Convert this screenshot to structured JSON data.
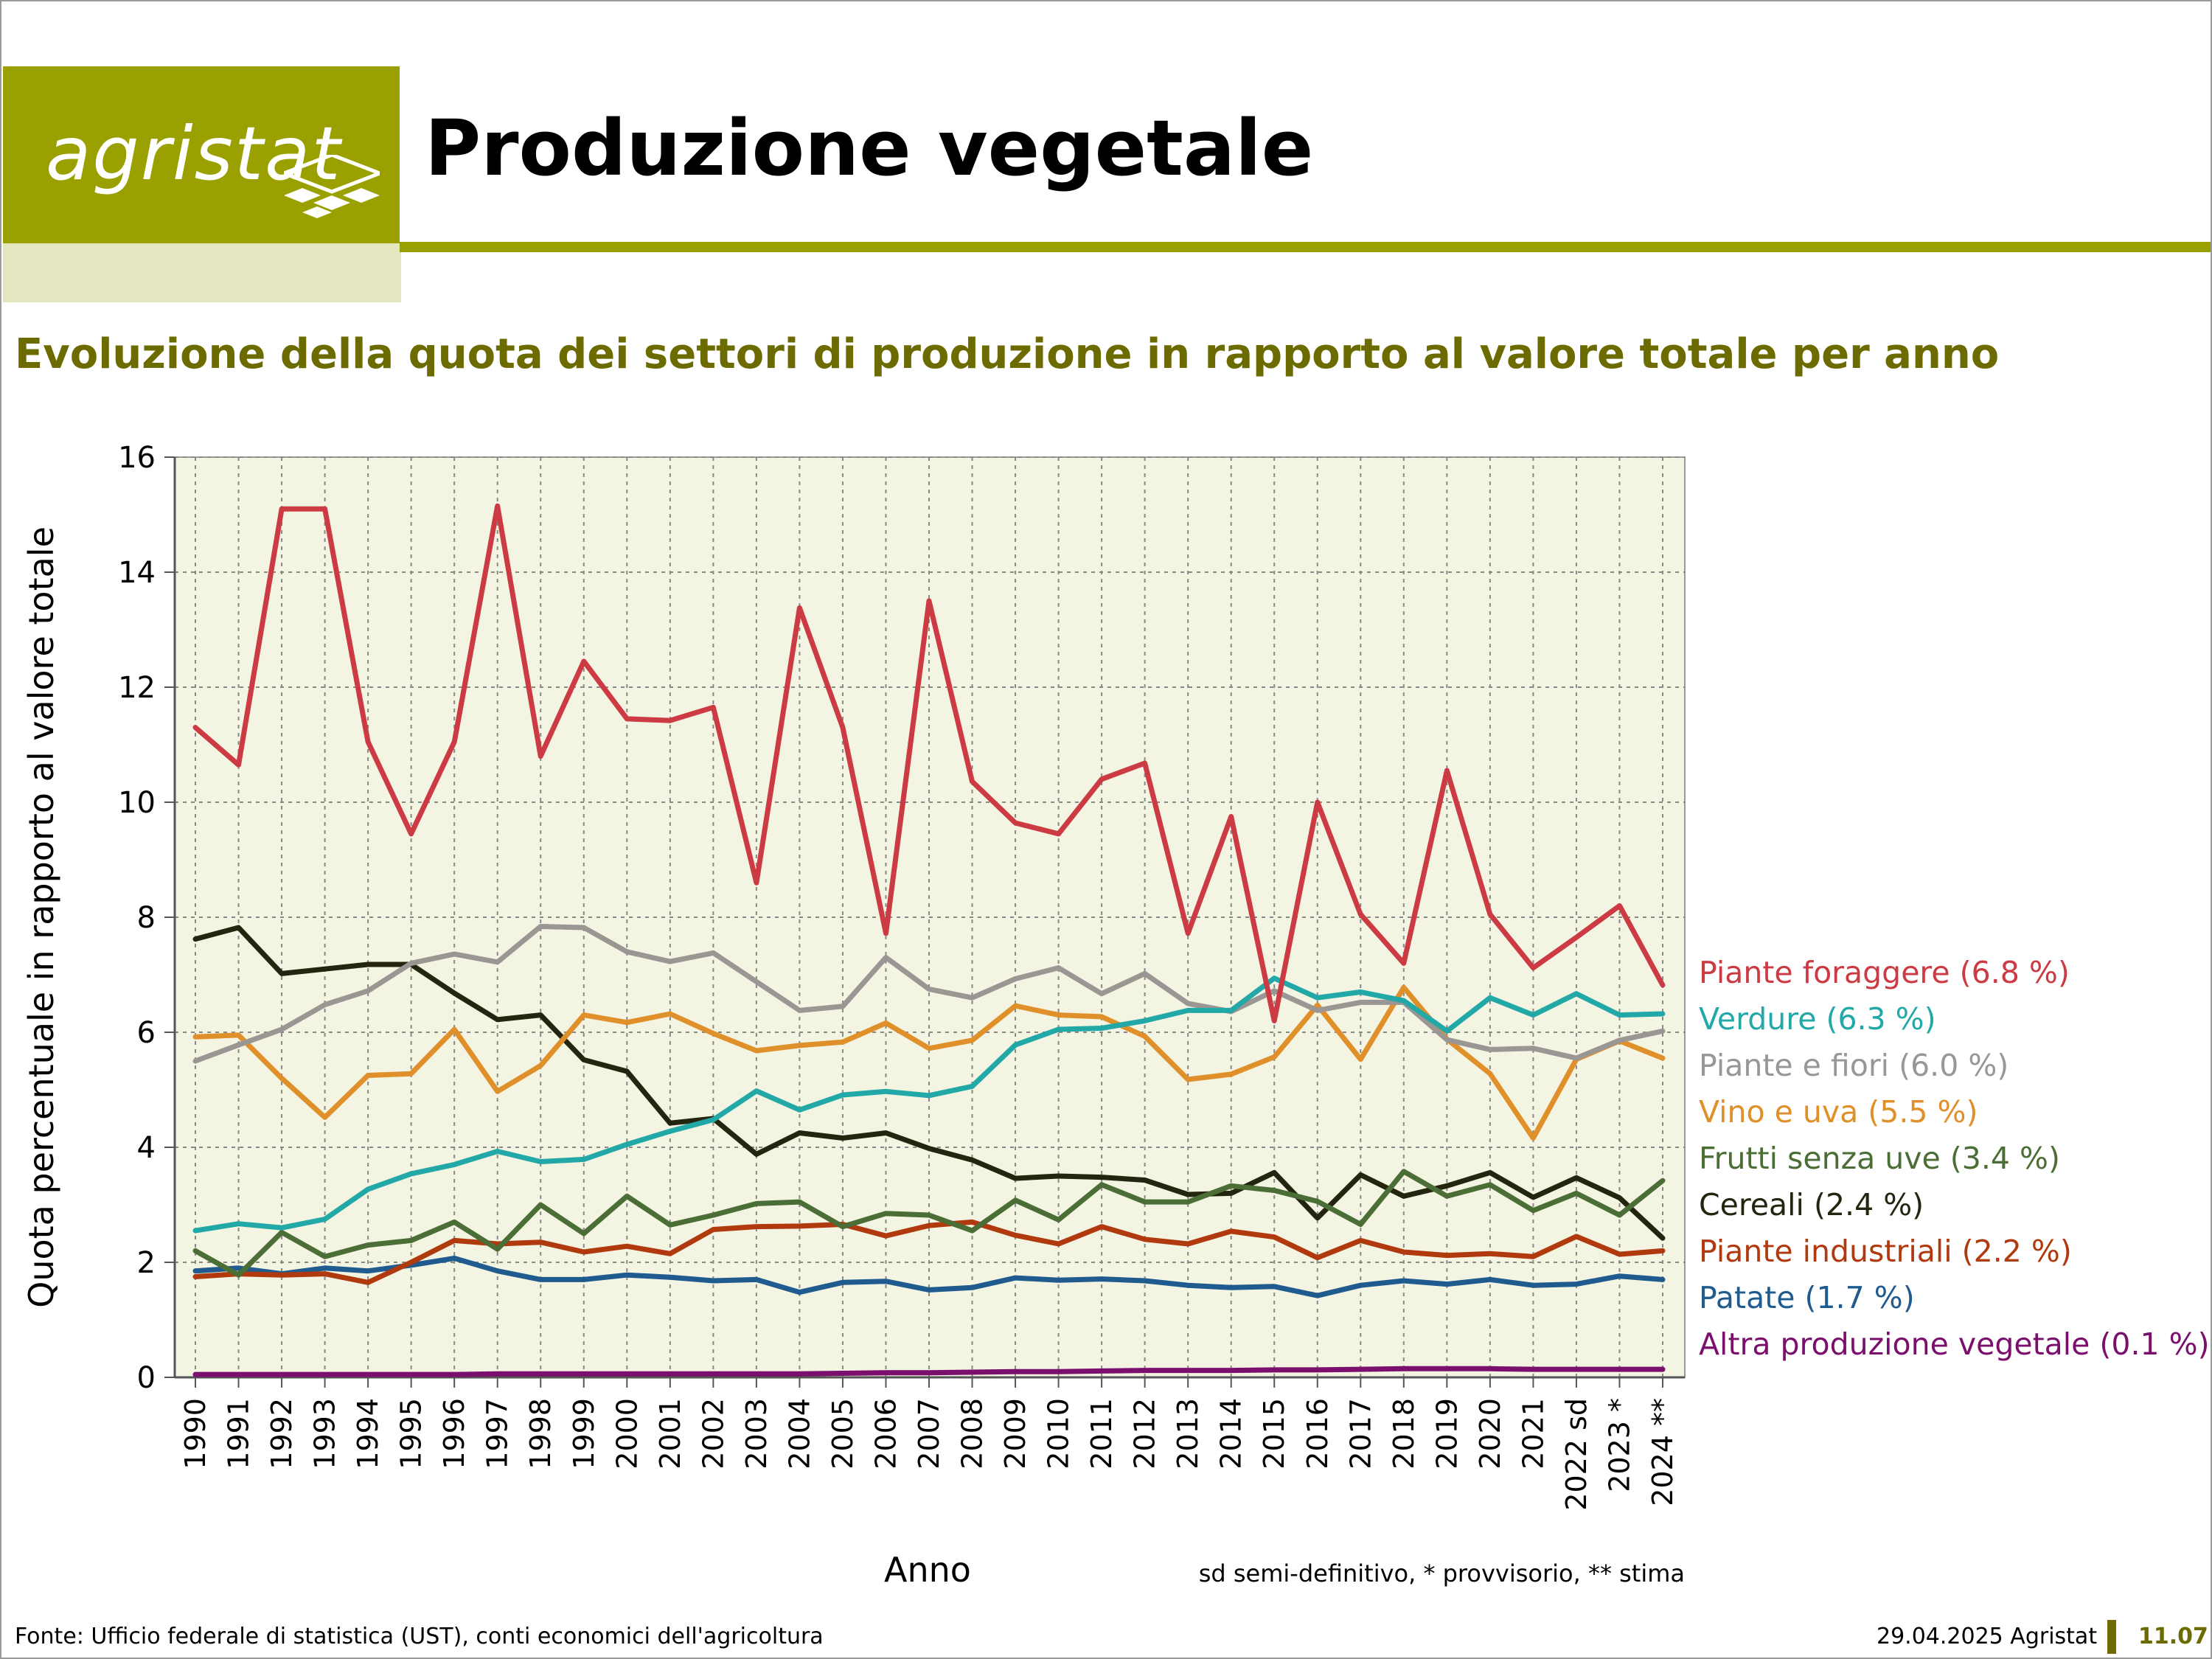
{
  "header": {
    "logo_text": "agristat",
    "page_title": "Produzione vegetale",
    "brand_color": "#9aa000"
  },
  "subtitle": "Evoluzione della quota dei settori di produzione in rapporto al valore totale per anno",
  "chart_data": {
    "type": "line",
    "ylabel": "Quota percentuale in rapporto al valore totale",
    "xlabel": "Anno",
    "ylim": [
      0,
      16
    ],
    "yticks": [
      0,
      2,
      4,
      6,
      8,
      10,
      12,
      14,
      16
    ],
    "grid": true,
    "legend_position": "right",
    "note": "sd semi-definitivo, * provvisorio, ** stima",
    "categories": [
      "1990",
      "1991",
      "1992",
      "1993",
      "1994",
      "1995",
      "1996",
      "1997",
      "1998",
      "1999",
      "2000",
      "2001",
      "2002",
      "2003",
      "2004",
      "2005",
      "2006",
      "2007",
      "2008",
      "2009",
      "2010",
      "2011",
      "2012",
      "2013",
      "2014",
      "2015",
      "2016",
      "2017",
      "2018",
      "2019",
      "2020",
      "2021",
      "2022 sd",
      "2023 *",
      "2024 **"
    ],
    "series": [
      {
        "name": "Altra produzione vegetale (0.1 %)",
        "color": "#7b0f6e",
        "values": [
          0.05,
          0.05,
          0.05,
          0.05,
          0.05,
          0.05,
          0.05,
          0.06,
          0.06,
          0.06,
          0.06,
          0.06,
          0.06,
          0.06,
          0.06,
          0.07,
          0.08,
          0.08,
          0.09,
          0.1,
          0.1,
          0.11,
          0.12,
          0.12,
          0.12,
          0.13,
          0.13,
          0.14,
          0.15,
          0.15,
          0.15,
          0.14,
          0.14,
          0.14,
          0.14
        ]
      },
      {
        "name": "Patate (1.7 %)",
        "color": "#1f5b8f",
        "values": [
          1.85,
          1.9,
          1.8,
          1.9,
          1.85,
          1.95,
          2.07,
          1.85,
          1.7,
          1.7,
          1.78,
          1.74,
          1.68,
          1.7,
          1.48,
          1.65,
          1.67,
          1.52,
          1.56,
          1.73,
          1.69,
          1.71,
          1.68,
          1.6,
          1.56,
          1.58,
          1.42,
          1.6,
          1.68,
          1.62,
          1.7,
          1.6,
          1.62,
          1.76,
          1.7
        ]
      },
      {
        "name": "Piante industriali (2.2 %)",
        "color": "#b03a0e",
        "values": [
          1.75,
          1.8,
          1.78,
          1.8,
          1.65,
          2.0,
          2.38,
          2.32,
          2.35,
          2.18,
          2.28,
          2.15,
          2.57,
          2.62,
          2.63,
          2.66,
          2.46,
          2.64,
          2.7,
          2.47,
          2.32,
          2.62,
          2.4,
          2.32,
          2.54,
          2.44,
          2.08,
          2.38,
          2.18,
          2.12,
          2.15,
          2.1,
          2.45,
          2.14,
          2.2
        ]
      },
      {
        "name": "Cereali (2.4 %)",
        "color": "#23250f",
        "values": [
          7.62,
          7.82,
          7.02,
          7.1,
          7.18,
          7.18,
          6.68,
          6.22,
          6.3,
          5.52,
          5.32,
          4.42,
          4.5,
          3.88,
          4.25,
          4.16,
          4.25,
          3.98,
          3.78,
          3.46,
          3.5,
          3.48,
          3.43,
          3.18,
          3.2,
          3.56,
          2.77,
          3.52,
          3.15,
          3.33,
          3.56,
          3.13,
          3.47,
          3.12,
          2.42
        ]
      },
      {
        "name": "Frutti senza uve (3.4 %)",
        "color": "#4a6e35",
        "values": [
          2.2,
          1.78,
          2.52,
          2.1,
          2.3,
          2.38,
          2.7,
          2.23,
          3.0,
          2.5,
          3.15,
          2.65,
          2.82,
          3.02,
          3.05,
          2.62,
          2.85,
          2.82,
          2.55,
          3.08,
          2.74,
          3.35,
          3.05,
          3.05,
          3.33,
          3.25,
          3.06,
          2.66,
          3.58,
          3.15,
          3.35,
          2.9,
          3.2,
          2.82,
          3.42
        ]
      },
      {
        "name": "Vino e uva (5.5 %)",
        "color": "#e0902a",
        "values": [
          5.92,
          5.95,
          5.2,
          4.52,
          5.25,
          5.28,
          6.05,
          4.97,
          5.42,
          6.3,
          6.17,
          6.32,
          5.98,
          5.68,
          5.77,
          5.83,
          6.16,
          5.72,
          5.86,
          6.46,
          6.3,
          6.27,
          5.93,
          5.18,
          5.27,
          5.57,
          6.47,
          5.53,
          6.78,
          5.88,
          5.28,
          4.16,
          5.53,
          5.85,
          5.55
        ]
      },
      {
        "name": "Piante e fiori (6.0 %)",
        "color": "#9a9693",
        "values": [
          5.5,
          5.78,
          6.05,
          6.48,
          6.72,
          7.2,
          7.36,
          7.22,
          7.84,
          7.82,
          7.4,
          7.23,
          7.38,
          6.88,
          6.38,
          6.45,
          7.3,
          6.75,
          6.6,
          6.93,
          7.12,
          6.67,
          7.02,
          6.5,
          6.36,
          6.72,
          6.38,
          6.52,
          6.52,
          5.87,
          5.7,
          5.72,
          5.55,
          5.86,
          6.02
        ]
      },
      {
        "name": "Verdure (6.3 %)",
        "color": "#23a8a8",
        "values": [
          2.55,
          2.67,
          2.6,
          2.75,
          3.27,
          3.54,
          3.7,
          3.93,
          3.75,
          3.79,
          4.05,
          4.28,
          4.48,
          4.98,
          4.65,
          4.91,
          4.97,
          4.9,
          5.06,
          5.78,
          6.05,
          6.07,
          6.2,
          6.38,
          6.38,
          6.94,
          6.6,
          6.7,
          6.55,
          6.02,
          6.6,
          6.3,
          6.67,
          6.3,
          6.32
        ]
      },
      {
        "name": "Piante foraggere (6.8 %)",
        "color": "#cc3b44",
        "values": [
          11.3,
          10.65,
          15.1,
          15.1,
          11.05,
          9.45,
          11.05,
          15.15,
          10.8,
          12.45,
          11.45,
          11.42,
          11.65,
          8.6,
          13.38,
          11.3,
          7.72,
          13.5,
          10.36,
          9.64,
          9.45,
          10.4,
          10.68,
          7.72,
          9.75,
          6.2,
          10.0,
          8.05,
          7.2,
          10.55,
          8.05,
          7.12,
          7.65,
          8.2,
          6.82
        ]
      }
    ]
  },
  "footer": {
    "source": "Fonte: Ufficio federale di statistica (UST), conti economici dell'agricoltura",
    "date": "29.04.2025 Agristat",
    "page": "11.07"
  }
}
